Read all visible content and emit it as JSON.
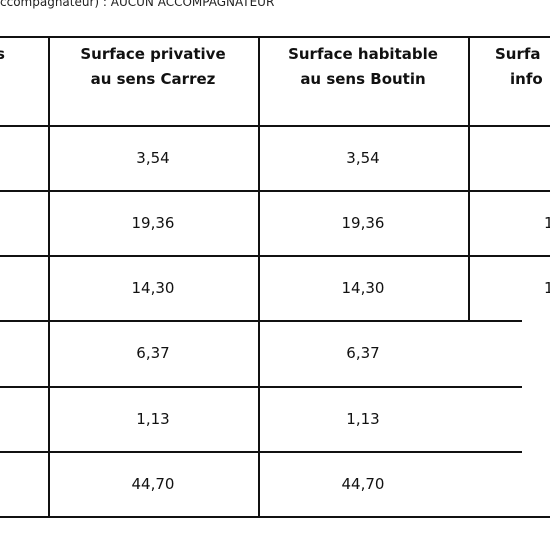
{
  "top_note": "ccompagnateur) : AUCUN ACCOMPAGNATEUR",
  "table": {
    "headers": [
      [
        "s"
      ],
      [
        "Surface privative",
        "au sens Carrez"
      ],
      [
        "Surface habitable",
        "au sens Boutin"
      ],
      [
        "Surfa",
        "info"
      ]
    ],
    "rows": [
      [
        "3,54",
        "3,54"
      ],
      [
        "19,36",
        "19,36",
        "1"
      ],
      [
        "14,30",
        "14,30",
        "1"
      ],
      [
        "6,37",
        "6,37"
      ],
      [
        "1,13",
        "1,13"
      ],
      [
        "44,70",
        "44,70"
      ]
    ]
  }
}
